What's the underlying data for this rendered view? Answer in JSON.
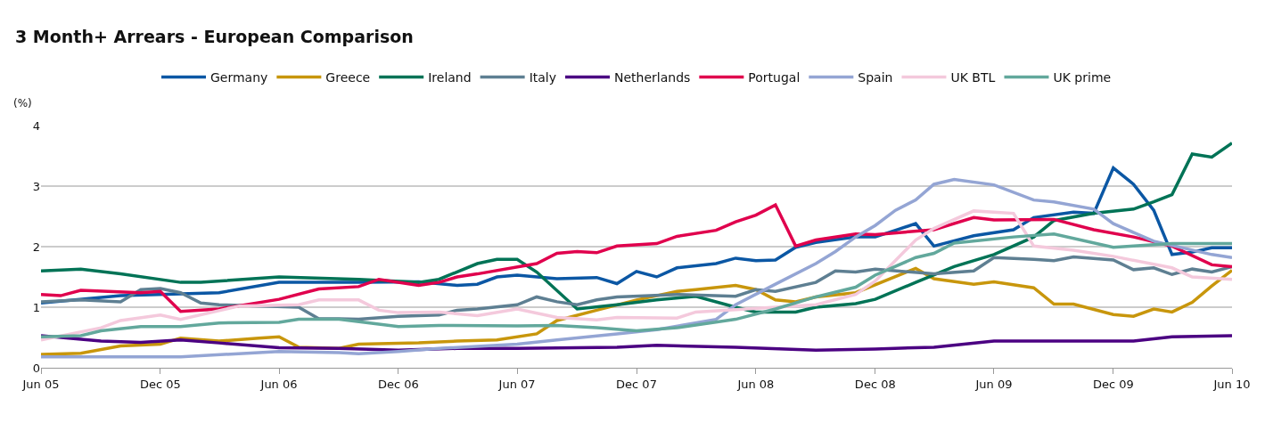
{
  "chart_data": {
    "type": "line",
    "title": "3 Month+ Arrears - European Comparison",
    "ylabel": "(%)",
    "xlim": [
      "2005-06",
      "2010-06"
    ],
    "xticks": [
      {
        "value": "2005-06",
        "label": "Jun 05"
      },
      {
        "value": "2005-12",
        "label": "Dec 05"
      },
      {
        "value": "2006-06",
        "label": "Jun 06"
      },
      {
        "value": "2006-12",
        "label": "Dec 06"
      },
      {
        "value": "2007-06",
        "label": "Jun 07"
      },
      {
        "value": "2007-12",
        "label": "Dec 07"
      },
      {
        "value": "2008-06",
        "label": "Jun 08"
      },
      {
        "value": "2008-12",
        "label": "Dec 08"
      },
      {
        "value": "2009-06",
        "label": "Jun 09"
      },
      {
        "value": "2009-12",
        "label": "Dec 09"
      },
      {
        "value": "2010-06",
        "label": "Jun 10"
      }
    ],
    "ylim": [
      0,
      4
    ],
    "yticks": [
      0,
      1,
      2,
      3,
      4
    ],
    "grid": "y",
    "legend": "top",
    "marker": "none",
    "line_style": "solid",
    "series": [
      {
        "name": "Germany",
        "color": "#0b57a4",
        "x": [
          "2005-06",
          "2005-10",
          "2006-03",
          "2006-06",
          "2006-10",
          "2007-01",
          "2007-03",
          "2007-04",
          "2007-05",
          "2007-06",
          "2007-08",
          "2007-10",
          "2007-11",
          "2007-12",
          "2008-01",
          "2008-02",
          "2008-04",
          "2008-05",
          "2008-06",
          "2008-07",
          "2008-08",
          "2008-09",
          "2008-11",
          "2008-12",
          "2009-02",
          "2009-03",
          "2009-05",
          "2009-07",
          "2009-08",
          "2009-10",
          "2009-11",
          "2009-12",
          "2010-01",
          "2010-02",
          "2010-03",
          "2010-04",
          "2010-05",
          "2010-06"
        ],
        "values": [
          1.07,
          1.19,
          1.24,
          1.41,
          1.41,
          1.42,
          1.36,
          1.38,
          1.5,
          1.53,
          1.47,
          1.49,
          1.39,
          1.59,
          1.5,
          1.65,
          1.72,
          1.81,
          1.77,
          1.78,
          1.99,
          2.07,
          2.16,
          2.16,
          2.38,
          2.01,
          2.18,
          2.28,
          2.48,
          2.57,
          2.55,
          3.3,
          3.03,
          2.6,
          1.87,
          1.91,
          1.98,
          1.98
        ]
      },
      {
        "name": "Greece",
        "color": "#c8960c",
        "x": [
          "2005-06",
          "2005-08",
          "2005-10",
          "2005-12",
          "2006-01",
          "2006-03",
          "2006-05",
          "2006-06",
          "2006-07",
          "2006-09",
          "2006-10",
          "2007-01",
          "2007-03",
          "2007-05",
          "2007-07",
          "2007-08",
          "2007-10",
          "2007-12",
          "2008-02",
          "2008-03",
          "2008-05",
          "2008-06",
          "2008-07",
          "2008-08",
          "2008-09",
          "2008-11",
          "2009-02",
          "2009-03",
          "2009-05",
          "2009-06",
          "2009-08",
          "2009-09",
          "2009-10",
          "2009-12",
          "2010-01",
          "2010-02",
          "2010-03",
          "2010-04",
          "2010-05",
          "2010-06"
        ],
        "values": [
          0.22,
          0.24,
          0.36,
          0.39,
          0.49,
          0.44,
          0.49,
          0.51,
          0.34,
          0.32,
          0.39,
          0.41,
          0.44,
          0.46,
          0.56,
          0.78,
          0.95,
          1.12,
          1.26,
          1.29,
          1.36,
          1.29,
          1.12,
          1.09,
          1.17,
          1.24,
          1.64,
          1.47,
          1.38,
          1.42,
          1.32,
          1.05,
          1.05,
          0.88,
          0.85,
          0.97,
          0.92,
          1.08,
          1.35,
          1.61
        ]
      },
      {
        "name": "Ireland",
        "color": "#007356",
        "x": [
          "2005-06",
          "2005-08",
          "2005-10",
          "2006-01",
          "2006-02",
          "2006-06",
          "2006-10",
          "2007-01",
          "2007-02",
          "2007-04",
          "2007-05",
          "2007-06",
          "2007-07",
          "2007-09",
          "2007-11",
          "2008-01",
          "2008-03",
          "2008-05",
          "2008-06",
          "2008-08",
          "2008-09",
          "2008-11",
          "2008-12",
          "2009-02",
          "2009-04",
          "2009-06",
          "2009-08",
          "2009-09",
          "2009-11",
          "2010-01",
          "2010-02",
          "2010-03",
          "2010-04",
          "2010-05",
          "2010-06"
        ],
        "values": [
          1.6,
          1.63,
          1.55,
          1.41,
          1.41,
          1.5,
          1.46,
          1.41,
          1.46,
          1.72,
          1.79,
          1.79,
          1.58,
          0.97,
          1.04,
          1.12,
          1.18,
          1.0,
          0.92,
          0.92,
          1.0,
          1.06,
          1.13,
          1.41,
          1.67,
          1.87,
          2.16,
          2.43,
          2.55,
          2.62,
          2.74,
          2.86,
          3.53,
          3.48,
          3.71
        ]
      },
      {
        "name": "Italy",
        "color": "#5e7f92",
        "x": [
          "2005-06",
          "2005-08",
          "2005-10",
          "2005-11",
          "2005-12",
          "2006-01",
          "2006-02",
          "2006-03",
          "2006-07",
          "2006-08",
          "2006-09",
          "2006-10",
          "2006-12",
          "2007-02",
          "2007-03",
          "2007-04",
          "2007-06",
          "2007-07",
          "2007-08",
          "2007-09",
          "2007-10",
          "2007-11",
          "2008-02",
          "2008-05",
          "2008-06",
          "2008-07",
          "2008-09",
          "2008-10",
          "2008-11",
          "2008-12",
          "2009-03",
          "2009-05",
          "2009-06",
          "2009-08",
          "2009-09",
          "2009-10",
          "2009-12",
          "2010-01",
          "2010-02",
          "2010-03",
          "2010-04",
          "2010-05",
          "2010-06"
        ],
        "values": [
          1.09,
          1.12,
          1.09,
          1.29,
          1.31,
          1.24,
          1.07,
          1.04,
          1.0,
          0.81,
          0.81,
          0.8,
          0.85,
          0.87,
          0.95,
          0.97,
          1.04,
          1.17,
          1.09,
          1.04,
          1.12,
          1.17,
          1.21,
          1.18,
          1.29,
          1.26,
          1.41,
          1.6,
          1.58,
          1.63,
          1.55,
          1.6,
          1.82,
          1.79,
          1.77,
          1.83,
          1.78,
          1.62,
          1.65,
          1.54,
          1.63,
          1.58,
          1.67
        ]
      },
      {
        "name": "Netherlands",
        "color": "#4b0082",
        "x": [
          "2005-06",
          "2005-09",
          "2005-11",
          "2006-01",
          "2006-03",
          "2006-06",
          "2006-09",
          "2006-12",
          "2007-03",
          "2007-06",
          "2007-11",
          "2008-01",
          "2008-05",
          "2008-09",
          "2008-12",
          "2009-03",
          "2009-06",
          "2009-11",
          "2010-01",
          "2010-03",
          "2010-06"
        ],
        "values": [
          0.53,
          0.44,
          0.42,
          0.46,
          0.41,
          0.33,
          0.32,
          0.29,
          0.32,
          0.32,
          0.34,
          0.37,
          0.34,
          0.29,
          0.31,
          0.34,
          0.44,
          0.44,
          0.44,
          0.51,
          0.53
        ]
      },
      {
        "name": "Portugal",
        "color": "#e0004d",
        "x": [
          "2005-06",
          "2005-07",
          "2005-08",
          "2005-11",
          "2005-12",
          "2006-01",
          "2006-03",
          "2006-06",
          "2006-08",
          "2006-10",
          "2006-11",
          "2007-01",
          "2007-02",
          "2007-03",
          "2007-04",
          "2007-07",
          "2007-08",
          "2007-09",
          "2007-10",
          "2007-11",
          "2008-01",
          "2008-02",
          "2008-04",
          "2008-05",
          "2008-06",
          "2008-07",
          "2008-08",
          "2008-09",
          "2008-11",
          "2008-12",
          "2009-03",
          "2009-05",
          "2009-06",
          "2009-09",
          "2009-11",
          "2010-01",
          "2010-03",
          "2010-05",
          "2010-06"
        ],
        "values": [
          1.21,
          1.19,
          1.28,
          1.24,
          1.26,
          0.93,
          0.97,
          1.13,
          1.3,
          1.34,
          1.46,
          1.36,
          1.41,
          1.5,
          1.55,
          1.72,
          1.89,
          1.92,
          1.9,
          2.01,
          2.05,
          2.17,
          2.27,
          2.41,
          2.52,
          2.69,
          2.01,
          2.11,
          2.21,
          2.2,
          2.28,
          2.48,
          2.44,
          2.45,
          2.28,
          2.16,
          2.01,
          1.7,
          1.67
        ]
      },
      {
        "name": "Spain",
        "color": "#94a5d4",
        "x": [
          "2005-06",
          "2006-01",
          "2006-06",
          "2006-09",
          "2006-10",
          "2006-12",
          "2007-02",
          "2007-06",
          "2007-08",
          "2007-11",
          "2008-01",
          "2008-04",
          "2008-05",
          "2008-07",
          "2008-09",
          "2008-10",
          "2008-11",
          "2008-12",
          "2009-01",
          "2009-02",
          "2009-03",
          "2009-04",
          "2009-06",
          "2009-08",
          "2009-09",
          "2009-11",
          "2009-12",
          "2010-02",
          "2010-05",
          "2010-06"
        ],
        "values": [
          0.18,
          0.18,
          0.27,
          0.25,
          0.23,
          0.27,
          0.32,
          0.39,
          0.46,
          0.56,
          0.63,
          0.8,
          1.04,
          1.38,
          1.72,
          1.92,
          2.16,
          2.35,
          2.6,
          2.77,
          3.03,
          3.11,
          3.02,
          2.77,
          2.74,
          2.62,
          2.38,
          2.09,
          1.87,
          1.82
        ]
      },
      {
        "name": "UK BTL",
        "color": "#f4c9dc",
        "x": [
          "2005-06",
          "2005-09",
          "2005-10",
          "2005-12",
          "2006-01",
          "2006-04",
          "2006-07",
          "2006-08",
          "2006-10",
          "2006-11",
          "2006-12",
          "2007-02",
          "2007-04",
          "2007-06",
          "2007-08",
          "2007-10",
          "2007-11",
          "2008-02",
          "2008-03",
          "2008-05",
          "2008-07",
          "2008-09",
          "2008-11",
          "2008-12",
          "2009-02",
          "2009-03",
          "2009-05",
          "2009-07",
          "2009-08",
          "2009-10",
          "2009-12",
          "2010-03",
          "2010-04",
          "2010-06"
        ],
        "values": [
          0.46,
          0.66,
          0.78,
          0.87,
          0.8,
          1.02,
          1.04,
          1.12,
          1.12,
          0.95,
          0.91,
          0.92,
          0.86,
          0.97,
          0.83,
          0.79,
          0.83,
          0.82,
          0.92,
          0.96,
          1.0,
          1.04,
          1.21,
          1.43,
          2.11,
          2.3,
          2.59,
          2.55,
          2.01,
          1.94,
          1.84,
          1.65,
          1.5,
          1.46
        ]
      },
      {
        "name": "UK prime",
        "color": "#62a89c",
        "x": [
          "2005-06",
          "2005-08",
          "2005-09",
          "2005-11",
          "2006-01",
          "2006-03",
          "2006-06",
          "2006-07",
          "2006-09",
          "2006-12",
          "2007-02",
          "2007-06",
          "2007-08",
          "2007-10",
          "2007-12",
          "2008-02",
          "2008-05",
          "2008-07",
          "2008-09",
          "2008-11",
          "2008-12",
          "2009-02",
          "2009-03",
          "2009-04",
          "2009-07",
          "2009-09",
          "2009-12",
          "2010-01",
          "2010-03",
          "2010-06"
        ],
        "values": [
          0.51,
          0.53,
          0.61,
          0.68,
          0.68,
          0.74,
          0.75,
          0.8,
          0.8,
          0.68,
          0.7,
          0.69,
          0.7,
          0.66,
          0.61,
          0.66,
          0.8,
          0.97,
          1.17,
          1.33,
          1.53,
          1.82,
          1.89,
          2.06,
          2.16,
          2.21,
          1.99,
          2.01,
          2.05,
          2.05
        ]
      }
    ]
  }
}
